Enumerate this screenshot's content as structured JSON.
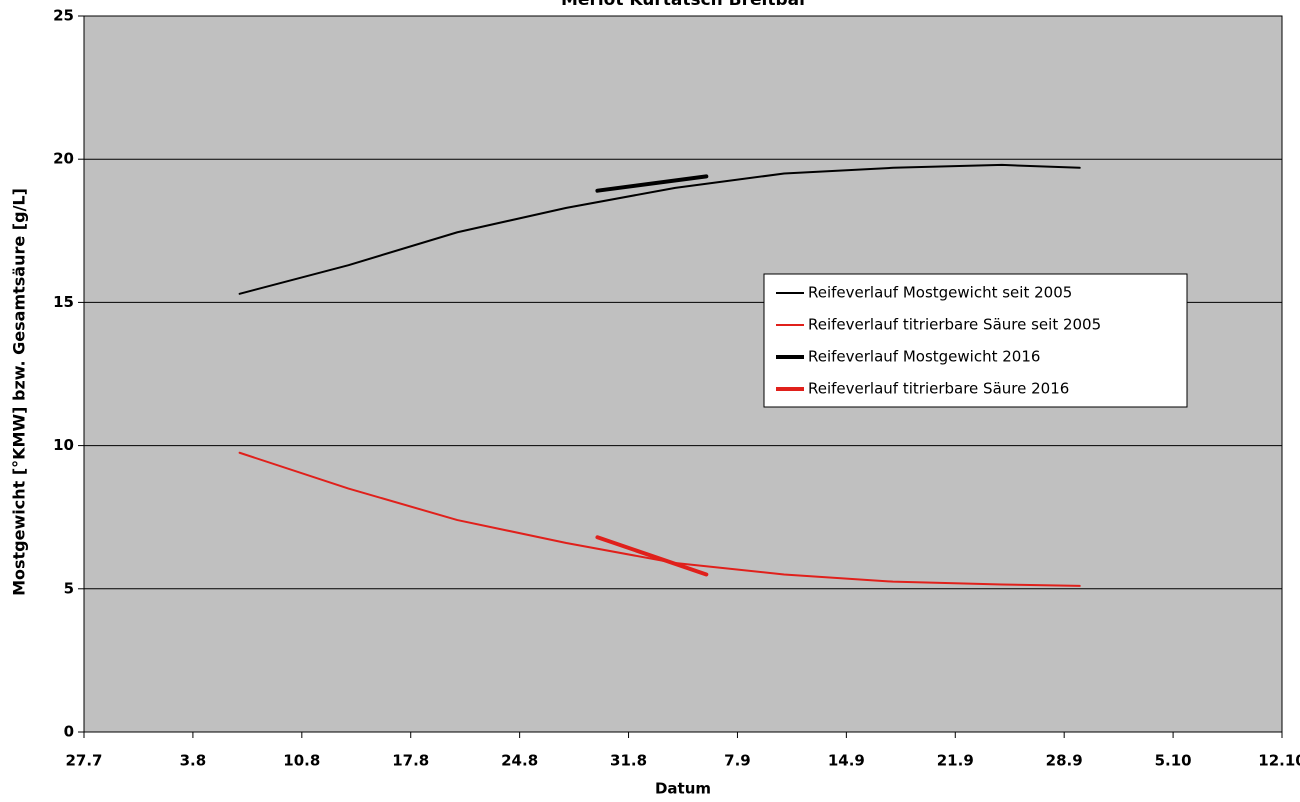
{
  "chart_data": {
    "type": "line",
    "title": "Merlot Kurtatsch Breitbal",
    "x_label": "Datum",
    "y_label": "Mostgewicht [°KMW] bzw. Gesamtsäure [g/L]",
    "xlim": [
      "27.7",
      "12.10"
    ],
    "xticks": [
      "27.7",
      "3.8",
      "10.8",
      "17.8",
      "24.8",
      "31.8",
      "7.9",
      "14.9",
      "21.9",
      "28.9",
      "5.10",
      "12.10"
    ],
    "ylim": [
      0,
      25
    ],
    "yticks": [
      0,
      5,
      10,
      15,
      20,
      25
    ],
    "grid": true,
    "legend": "right",
    "series": [
      {
        "name": "Reifeverlauf Mostgewicht seit 2005",
        "color": "#000000",
        "width": 2,
        "x": [
          "6.8",
          "13.8",
          "20.8",
          "27.8",
          "3.9",
          "10.9",
          "17.9",
          "24.9",
          "29.9"
        ],
        "values": [
          15.3,
          16.3,
          17.45,
          18.3,
          19.0,
          19.5,
          19.7,
          19.8,
          19.7
        ]
      },
      {
        "name": "Reifeverlauf titrierbare Säure seit 2005",
        "color": "#e0201b",
        "width": 2,
        "x": [
          "6.8",
          "13.8",
          "20.8",
          "27.8",
          "3.9",
          "10.9",
          "17.9",
          "24.9",
          "29.9"
        ],
        "values": [
          9.75,
          8.5,
          7.4,
          6.6,
          5.9,
          5.5,
          5.25,
          5.15,
          5.1
        ]
      },
      {
        "name": "Reifeverlauf Mostgewicht 2016",
        "color": "#000000",
        "width": 4,
        "x": [
          "29.8",
          "5.9"
        ],
        "values": [
          18.9,
          19.4
        ]
      },
      {
        "name": "Reifeverlauf titrierbare Säure 2016",
        "color": "#e0201b",
        "width": 4,
        "x": [
          "29.8",
          "5.9"
        ],
        "values": [
          6.8,
          5.5
        ]
      }
    ]
  }
}
